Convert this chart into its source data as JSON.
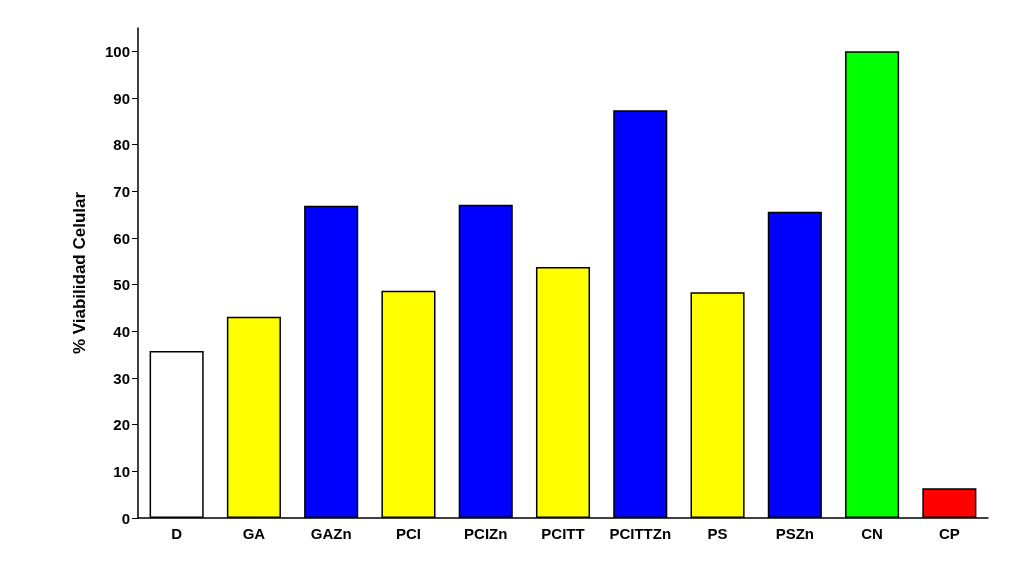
{
  "chart_data": {
    "type": "bar",
    "ylabel": "% Viabilidad Celular",
    "categories": [
      "D",
      "GA",
      "GAZn",
      "PCI",
      "PCIZn",
      "PCITT",
      "PCITTZn",
      "PS",
      "PSZn",
      "CN",
      "CP"
    ],
    "values": [
      35.8,
      43.1,
      66.9,
      48.7,
      67.1,
      53.8,
      87.4,
      48.4,
      65.6,
      100,
      6.4
    ],
    "colors": [
      "#ffffff",
      "#ffff00",
      "#0000ff",
      "#ffff00",
      "#0000ff",
      "#ffff00",
      "#0000ff",
      "#ffff00",
      "#0000ff",
      "#00ff00",
      "#ff0000"
    ],
    "ylim": [
      0,
      105
    ],
    "yticks": [
      0,
      10,
      20,
      30,
      40,
      50,
      60,
      70,
      80,
      90,
      100
    ],
    "grid": false
  }
}
